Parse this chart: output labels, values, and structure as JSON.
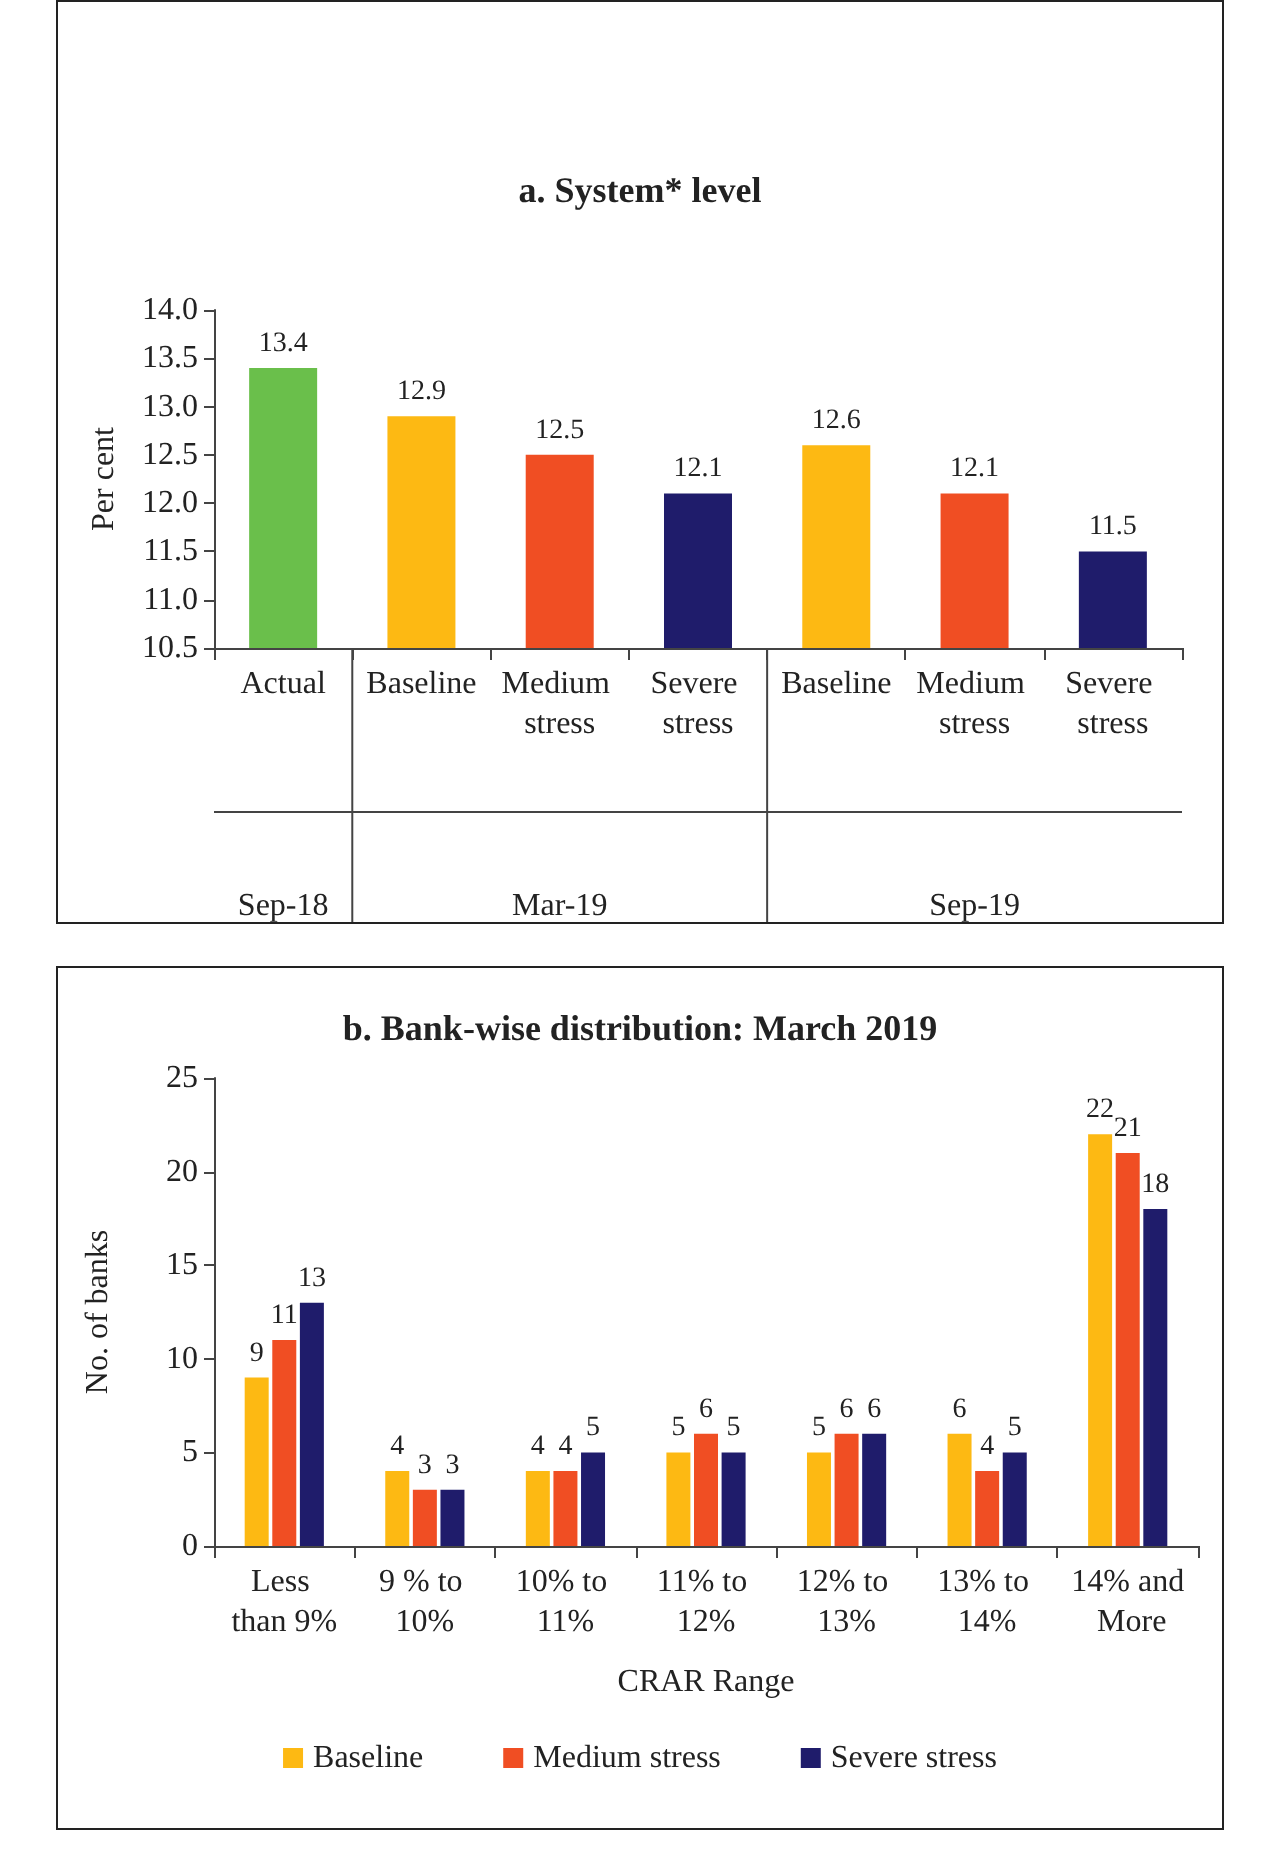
{
  "chart_data": [
    {
      "type": "bar",
      "title": "a. System* level",
      "ylabel": "Per cent",
      "categories": [
        "Actual",
        "Baseline",
        "Medium stress",
        "Severe stress",
        "Baseline",
        "Medium stress",
        "Severe stress"
      ],
      "values": [
        13.4,
        12.9,
        12.5,
        12.1,
        12.6,
        12.1,
        11.5
      ],
      "colors": [
        "#6abf4b",
        "#fdb913",
        "#f04e23",
        "#1f1c6b",
        "#fdb913",
        "#f04e23",
        "#1f1c6b"
      ],
      "ylim": [
        10.5,
        14.0
      ],
      "yticks": [
        {
          "value": 10.5,
          "label": "10.5"
        },
        {
          "value": 11,
          "label": "11.0"
        },
        {
          "value": 11.5,
          "label": "11.5"
        },
        {
          "value": 12,
          "label": "12.0"
        },
        {
          "value": 12.5,
          "label": "12.5"
        },
        {
          "value": 13,
          "label": "13.0"
        },
        {
          "value": 13.5,
          "label": "13.5"
        },
        {
          "value": 14,
          "label": "14.0"
        }
      ],
      "annotations": [
        "Sep-18",
        "Mar-19",
        "Sep-19"
      ],
      "data_labels": true,
      "grid": false,
      "legend": false
    },
    {
      "type": "bar",
      "title": "b. Bank-wise distribution: March 2019",
      "xlabel": "CRAR Range",
      "ylabel": "No. of banks",
      "categories": [
        "Less than 9%",
        "9 % to 10%",
        "10% to 11%",
        "11% to 12%",
        "12% to 13%",
        "13% to 14%",
        "14% and More"
      ],
      "series": [
        {
          "name": "Baseline",
          "color": "#fdb913",
          "values": [
            9,
            4,
            4,
            5,
            5,
            6,
            22
          ]
        },
        {
          "name": "Medium stress",
          "color": "#f04e23",
          "values": [
            11,
            3,
            4,
            6,
            6,
            4,
            21
          ]
        },
        {
          "name": "Severe stress",
          "color": "#1f1c6b",
          "values": [
            13,
            3,
            5,
            5,
            6,
            5,
            18
          ]
        }
      ],
      "ylim": [
        0,
        25
      ],
      "yticks": [
        0,
        5,
        10,
        15,
        20,
        25
      ],
      "data_labels": true,
      "grid": false,
      "legend": "bottom"
    }
  ]
}
